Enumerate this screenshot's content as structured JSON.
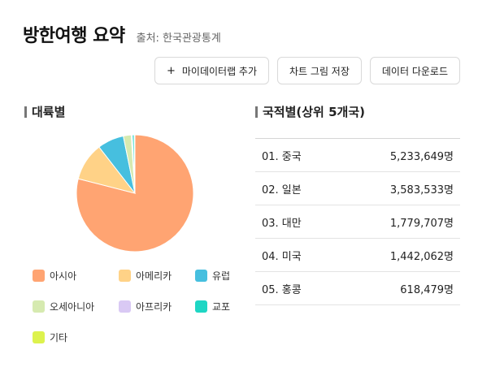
{
  "header": {
    "title": "방한여행 요약",
    "source": "출처: 한국관광통계"
  },
  "toolbar": {
    "add_label": "마이데이터랩 추가",
    "save_chart_label": "차트 그림 저장",
    "download_label": "데이터 다운로드"
  },
  "continent": {
    "title": "대륙별",
    "legend": [
      {
        "label": "아시아",
        "color": "#FFA472"
      },
      {
        "label": "아메리카",
        "color": "#FFD287"
      },
      {
        "label": "유럽",
        "color": "#46BFDF"
      },
      {
        "label": "오세아니아",
        "color": "#D6EAB0"
      },
      {
        "label": "아프리카",
        "color": "#D9C9F4"
      },
      {
        "label": "교포",
        "color": "#1ED6C4"
      },
      {
        "label": "기타",
        "color": "#DDF24D"
      }
    ]
  },
  "chart_data": {
    "type": "pie",
    "categories": [
      "아시아",
      "아메리카",
      "유럽",
      "오세아니아",
      "아프리카",
      "교포",
      "기타"
    ],
    "values": [
      79.0,
      10.5,
      7.3,
      2.2,
      0.3,
      0.5,
      0.2
    ],
    "colors": [
      "#FFA472",
      "#FFD287",
      "#46BFDF",
      "#D6EAB0",
      "#D9C9F4",
      "#1ED6C4",
      "#DDF24D"
    ],
    "legend_position": "bottom"
  },
  "country": {
    "title": "국적별(상위 5개국)",
    "rows": [
      {
        "name": "01. 중국",
        "value": "5,233,649명"
      },
      {
        "name": "02. 일본",
        "value": "3,583,533명"
      },
      {
        "name": "03. 대만",
        "value": "1,779,707명"
      },
      {
        "name": "04. 미국",
        "value": "1,442,062명"
      },
      {
        "name": "05. 홍콩",
        "value": "618,479명"
      }
    ]
  }
}
